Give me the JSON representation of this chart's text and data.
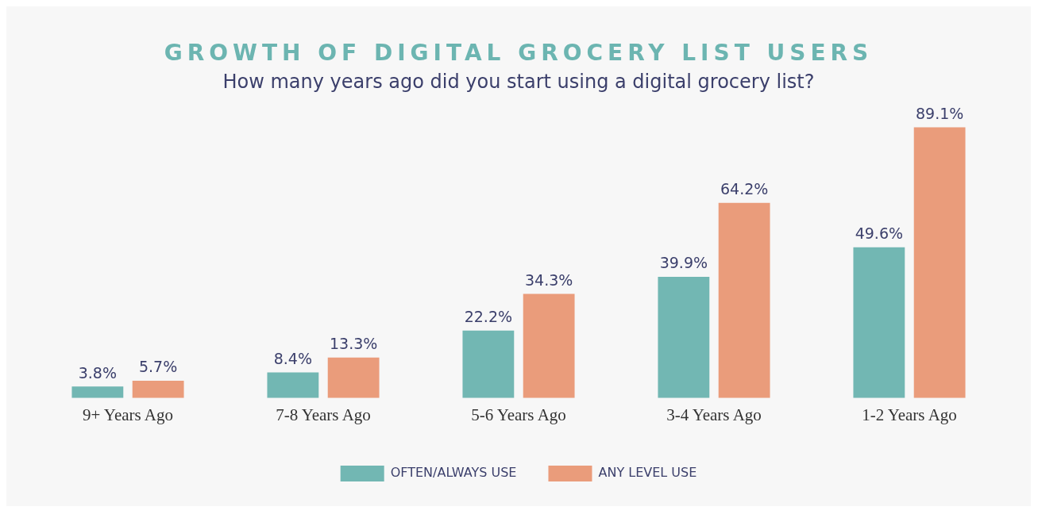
{
  "chart_data": {
    "type": "bar",
    "title": "GROWTH OF DIGITAL GROCERY LIST USERS",
    "subtitle": "How many years ago did you start using a digital grocery list?",
    "categories": [
      "9+ Years Ago",
      "7-8 Years Ago",
      "5-6 Years Ago",
      "3-4 Years Ago",
      "1-2 Years Ago"
    ],
    "series": [
      {
        "name": "OFTEN/ALWAYS USE",
        "color": "#72b7b3",
        "values": [
          3.8,
          8.4,
          22.2,
          39.9,
          49.6
        ],
        "value_labels": [
          "3.8%",
          "8.4%",
          "22.2%",
          "39.9%",
          "49.6%"
        ]
      },
      {
        "name": "ANY LEVEL USE",
        "color": "#ea9c7b",
        "values": [
          5.7,
          13.3,
          34.3,
          64.2,
          89.1
        ],
        "value_labels": [
          "5.7%",
          "13.3%",
          "34.3%",
          "64.2%",
          "89.1%"
        ]
      }
    ],
    "legend": "bottom"
  }
}
